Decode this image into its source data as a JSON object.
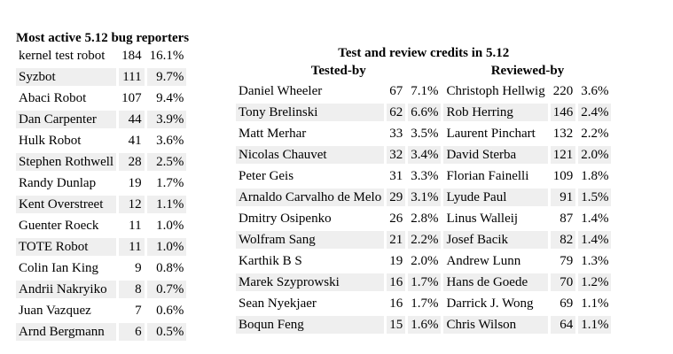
{
  "reporters": {
    "title": "Most active 5.12 bug reporters",
    "rows": [
      {
        "name": "kernel test robot",
        "count": "184",
        "pct": "16.1%"
      },
      {
        "name": "Syzbot",
        "count": "111",
        "pct": "9.7%"
      },
      {
        "name": "Abaci Robot",
        "count": "107",
        "pct": "9.4%"
      },
      {
        "name": "Dan Carpenter",
        "count": "44",
        "pct": "3.9%"
      },
      {
        "name": "Hulk Robot",
        "count": "41",
        "pct": "3.6%"
      },
      {
        "name": "Stephen Rothwell",
        "count": "28",
        "pct": "2.5%"
      },
      {
        "name": "Randy Dunlap",
        "count": "19",
        "pct": "1.7%"
      },
      {
        "name": "Kent Overstreet",
        "count": "12",
        "pct": "1.1%"
      },
      {
        "name": "Guenter Roeck",
        "count": "11",
        "pct": "1.0%"
      },
      {
        "name": "TOTE Robot",
        "count": "11",
        "pct": "1.0%"
      },
      {
        "name": "Colin Ian King",
        "count": "9",
        "pct": "0.8%"
      },
      {
        "name": "Andrii Nakryiko",
        "count": "8",
        "pct": "0.7%"
      },
      {
        "name": "Juan Vazquez",
        "count": "7",
        "pct": "0.6%"
      },
      {
        "name": "Arnd Bergmann",
        "count": "6",
        "pct": "0.5%"
      }
    ]
  },
  "credits": {
    "title": "Test and review credits in 5.12",
    "tested_header": "Tested-by",
    "reviewed_header": "Reviewed-by",
    "tested": [
      {
        "name": "Daniel Wheeler",
        "count": "67",
        "pct": "7.1%"
      },
      {
        "name": "Tony Brelinski",
        "count": "62",
        "pct": "6.6%"
      },
      {
        "name": "Matt Merhar",
        "count": "33",
        "pct": "3.5%"
      },
      {
        "name": "Nicolas Chauvet",
        "count": "32",
        "pct": "3.4%"
      },
      {
        "name": "Peter Geis",
        "count": "31",
        "pct": "3.3%"
      },
      {
        "name": "Arnaldo Carvalho de Melo",
        "count": "29",
        "pct": "3.1%"
      },
      {
        "name": "Dmitry Osipenko",
        "count": "26",
        "pct": "2.8%"
      },
      {
        "name": "Wolfram Sang",
        "count": "21",
        "pct": "2.2%"
      },
      {
        "name": "Karthik B S",
        "count": "19",
        "pct": "2.0%"
      },
      {
        "name": "Marek Szyprowski",
        "count": "16",
        "pct": "1.7%"
      },
      {
        "name": "Sean Nyekjaer",
        "count": "16",
        "pct": "1.7%"
      },
      {
        "name": "Boqun Feng",
        "count": "15",
        "pct": "1.6%"
      }
    ],
    "reviewed": [
      {
        "name": "Christoph Hellwig",
        "count": "220",
        "pct": "3.6%"
      },
      {
        "name": "Rob Herring",
        "count": "146",
        "pct": "2.4%"
      },
      {
        "name": "Laurent Pinchart",
        "count": "132",
        "pct": "2.2%"
      },
      {
        "name": "David Sterba",
        "count": "121",
        "pct": "2.0%"
      },
      {
        "name": "Florian Fainelli",
        "count": "109",
        "pct": "1.8%"
      },
      {
        "name": "Lyude Paul",
        "count": "91",
        "pct": "1.5%"
      },
      {
        "name": "Linus Walleij",
        "count": "87",
        "pct": "1.4%"
      },
      {
        "name": "Josef Bacik",
        "count": "82",
        "pct": "1.4%"
      },
      {
        "name": "Andrew Lunn",
        "count": "79",
        "pct": "1.3%"
      },
      {
        "name": "Hans de Goede",
        "count": "70",
        "pct": "1.2%"
      },
      {
        "name": "Darrick J. Wong",
        "count": "69",
        "pct": "1.1%"
      },
      {
        "name": "Chris Wilson",
        "count": "64",
        "pct": "1.1%"
      }
    ]
  }
}
